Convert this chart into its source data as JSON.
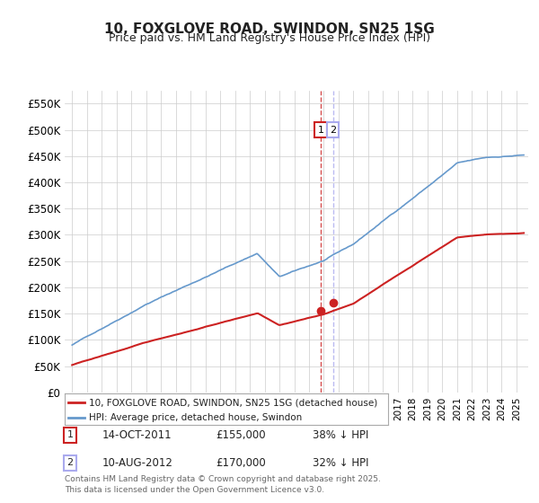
{
  "title": "10, FOXGLOVE ROAD, SWINDON, SN25 1SG",
  "subtitle": "Price paid vs. HM Land Registry's House Price Index (HPI)",
  "ylabel": "",
  "ylim": [
    0,
    575000
  ],
  "yticks": [
    0,
    50000,
    100000,
    150000,
    200000,
    250000,
    300000,
    350000,
    400000,
    450000,
    500000,
    550000
  ],
  "ytick_labels": [
    "£0",
    "£50K",
    "£100K",
    "£150K",
    "£200K",
    "£250K",
    "£300K",
    "£350K",
    "£400K",
    "£450K",
    "£500K",
    "£550K"
  ],
  "hpi_color": "#6699cc",
  "price_color": "#cc2222",
  "marker1_date": 2011.79,
  "marker1_price": 155000,
  "marker1_label": "14-OCT-2011",
  "marker1_amount": "£155,000",
  "marker1_pct": "38% ↓ HPI",
  "marker2_date": 2012.61,
  "marker2_price": 170000,
  "marker2_label": "10-AUG-2012",
  "marker2_amount": "£170,000",
  "marker2_pct": "32% ↓ HPI",
  "legend_line1": "10, FOXGLOVE ROAD, SWINDON, SN25 1SG (detached house)",
  "legend_line2": "HPI: Average price, detached house, Swindon",
  "footer": "Contains HM Land Registry data © Crown copyright and database right 2025.\nThis data is licensed under the Open Government Licence v3.0.",
  "background_color": "#ffffff",
  "grid_color": "#cccccc"
}
